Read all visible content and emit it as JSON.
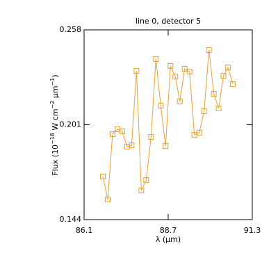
{
  "chart_data": {
    "type": "line",
    "title": "line 0, detector 5",
    "xlabel": "λ (μm)",
    "ylabel": [
      "Flux (10",
      "−18",
      " W cm",
      "−2",
      " μm",
      "−1",
      ")"
    ],
    "x": [
      86.68,
      86.83,
      86.98,
      87.13,
      87.28,
      87.43,
      87.57,
      87.72,
      87.87,
      88.02,
      88.17,
      88.32,
      88.47,
      88.62,
      88.77,
      88.92,
      89.06,
      89.21,
      89.36,
      89.51,
      89.66,
      89.81,
      89.96,
      90.11,
      90.26,
      90.41,
      90.55,
      90.7
    ],
    "series": [
      {
        "color": "#e8a030",
        "values": [
          0.1699,
          0.1561,
          0.1954,
          0.1983,
          0.197,
          0.1878,
          0.1887,
          0.2334,
          0.1615,
          0.1678,
          0.1937,
          0.2405,
          0.2125,
          0.1883,
          0.2363,
          0.23,
          0.215,
          0.2346,
          0.2329,
          0.1949,
          0.1962,
          0.2091,
          0.2459,
          0.2196,
          0.2108,
          0.2304,
          0.2354,
          0.2254
        ]
      }
    ],
    "xlim": [
      86.1,
      91.3
    ],
    "xticks": [
      86.1,
      88.7,
      91.3
    ],
    "ylim": [
      0.144,
      0.258
    ],
    "yticks": [
      0.144,
      0.201,
      0.258
    ]
  }
}
